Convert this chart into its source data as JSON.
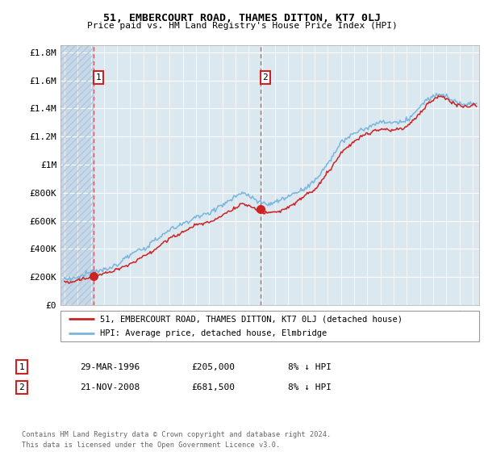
{
  "title": "51, EMBERCOURT ROAD, THAMES DITTON, KT7 0LJ",
  "subtitle": "Price paid vs. HM Land Registry's House Price Index (HPI)",
  "ylabel_ticks": [
    "£0",
    "£200K",
    "£400K",
    "£600K",
    "£800K",
    "£1M",
    "£1.2M",
    "£1.4M",
    "£1.6M",
    "£1.8M"
  ],
  "ytick_values": [
    0,
    200000,
    400000,
    600000,
    800000,
    1000000,
    1200000,
    1400000,
    1600000,
    1800000
  ],
  "ylim": [
    0,
    1850000
  ],
  "sale1_year": 1996.23,
  "sale1_price": 205000,
  "sale2_year": 2008.9,
  "sale2_price": 681500,
  "hpi_color": "#7ab5db",
  "price_color": "#cc2222",
  "plot_bg": "#dce8f0",
  "hatch_bg": "#c8d8e8",
  "legend_entry1": "51, EMBERCOURT ROAD, THAMES DITTON, KT7 0LJ (detached house)",
  "legend_entry2": "HPI: Average price, detached house, Elmbridge",
  "table_row1": [
    "1",
    "29-MAR-1996",
    "£205,000",
    "8% ↓ HPI"
  ],
  "table_row2": [
    "2",
    "21-NOV-2008",
    "£681,500",
    "8% ↓ HPI"
  ],
  "footer": "Contains HM Land Registry data © Crown copyright and database right 2024.\nThis data is licensed under the Open Government Licence v3.0.",
  "xmin": 1993.7,
  "xmax": 2025.5
}
